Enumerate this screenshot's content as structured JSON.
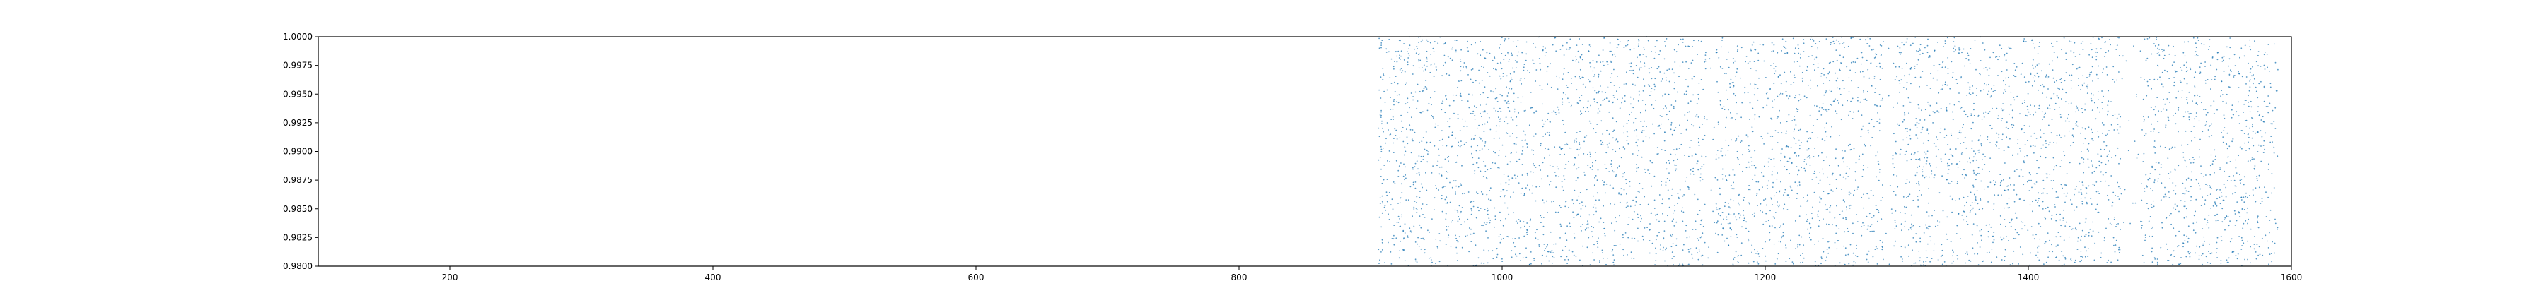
{
  "chart_data": {
    "type": "scatter",
    "title": "",
    "xlabel": "",
    "ylabel": "",
    "xlim": [
      100,
      1600
    ],
    "ylim": [
      0.98,
      1.0
    ],
    "x_ticks": [
      200,
      400,
      600,
      800,
      1000,
      1200,
      1400,
      1600
    ],
    "x_tick_labels": [
      "200",
      "400",
      "600",
      "800",
      "1000",
      "1200",
      "1400",
      "1600"
    ],
    "y_ticks": [
      0.98,
      0.9825,
      0.985,
      0.9875,
      0.99,
      0.9925,
      0.995,
      0.9975,
      1.0
    ],
    "y_tick_labels": [
      "0.9800",
      "0.9825",
      "0.9850",
      "0.9875",
      "0.9900",
      "0.9925",
      "0.9950",
      "0.9975",
      "1.0000"
    ],
    "grid": false,
    "legend": "none",
    "marker_color": "#1f77b4",
    "series": [
      {
        "point_count": 5000,
        "x_range": [
          906,
          1590
        ],
        "y_range": [
          0.98,
          1.0
        ],
        "sparse_x_bands": [
          [
            1155,
            1162
          ],
          [
            1290,
            1297
          ],
          [
            1470,
            1485
          ]
        ],
        "note_distribution": "uniform random scatter"
      }
    ]
  }
}
